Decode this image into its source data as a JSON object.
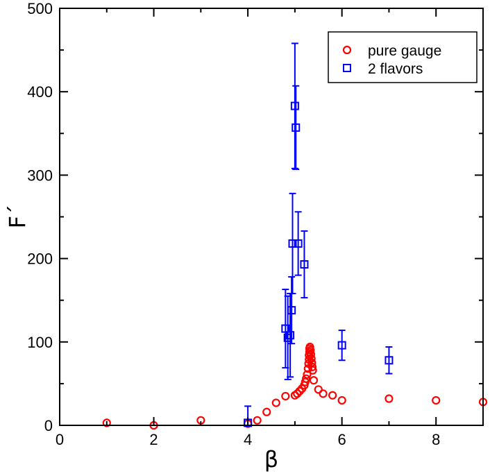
{
  "chart_data": {
    "type": "scatter",
    "title": "",
    "xlabel": "β",
    "ylabel": "F´",
    "xlim": [
      0,
      9
    ],
    "ylim": [
      0,
      500
    ],
    "x_ticks": [
      0,
      2,
      4,
      6,
      8
    ],
    "y_ticks": [
      0,
      100,
      200,
      300,
      400,
      500
    ],
    "x_tick_labels": [
      "0",
      "2",
      "4",
      "6",
      "8"
    ],
    "y_tick_labels": [
      "0",
      "100",
      "200",
      "300",
      "400",
      "500"
    ],
    "grid": false,
    "legend_position": "top-right",
    "series": [
      {
        "name": "pure gauge",
        "marker": "circle",
        "color": "#ff0000",
        "points": [
          {
            "x": 1.0,
            "y": 3
          },
          {
            "x": 2.0,
            "y": 0
          },
          {
            "x": 3.0,
            "y": 6
          },
          {
            "x": 4.0,
            "y": 2
          },
          {
            "x": 4.2,
            "y": 6
          },
          {
            "x": 4.4,
            "y": 16
          },
          {
            "x": 4.6,
            "y": 27
          },
          {
            "x": 4.8,
            "y": 35
          },
          {
            "x": 5.0,
            "y": 36
          },
          {
            "x": 5.05,
            "y": 38
          },
          {
            "x": 5.1,
            "y": 41
          },
          {
            "x": 5.15,
            "y": 44
          },
          {
            "x": 5.2,
            "y": 48
          },
          {
            "x": 5.22,
            "y": 52
          },
          {
            "x": 5.24,
            "y": 56
          },
          {
            "x": 5.26,
            "y": 61
          },
          {
            "x": 5.28,
            "y": 68
          },
          {
            "x": 5.29,
            "y": 74
          },
          {
            "x": 5.3,
            "y": 79
          },
          {
            "x": 5.3,
            "y": 84
          },
          {
            "x": 5.31,
            "y": 88
          },
          {
            "x": 5.31,
            "y": 92
          },
          {
            "x": 5.32,
            "y": 94
          },
          {
            "x": 5.33,
            "y": 90
          },
          {
            "x": 5.34,
            "y": 85
          },
          {
            "x": 5.35,
            "y": 80
          },
          {
            "x": 5.36,
            "y": 75
          },
          {
            "x": 5.37,
            "y": 70
          },
          {
            "x": 5.38,
            "y": 66
          },
          {
            "x": 5.4,
            "y": 54
          },
          {
            "x": 5.5,
            "y": 43
          },
          {
            "x": 5.6,
            "y": 38
          },
          {
            "x": 5.8,
            "y": 36
          },
          {
            "x": 6.0,
            "y": 30
          },
          {
            "x": 7.0,
            "y": 32
          },
          {
            "x": 8.0,
            "y": 30
          },
          {
            "x": 9.0,
            "y": 28
          }
        ]
      },
      {
        "name": "2 flavors",
        "marker": "square",
        "color": "#0000ff",
        "points": [
          {
            "x": 4.0,
            "y": 3,
            "err": 20
          },
          {
            "x": 4.8,
            "y": 116,
            "err": 47
          },
          {
            "x": 4.85,
            "y": 105,
            "err": 50
          },
          {
            "x": 4.9,
            "y": 108,
            "err": 50
          },
          {
            "x": 4.93,
            "y": 138,
            "err": 40
          },
          {
            "x": 4.95,
            "y": 218,
            "err": 60
          },
          {
            "x": 5.0,
            "y": 383,
            "err": 75
          },
          {
            "x": 5.02,
            "y": 357,
            "err": 50
          },
          {
            "x": 5.07,
            "y": 218,
            "err": 38
          },
          {
            "x": 5.2,
            "y": 193,
            "err": 40
          },
          {
            "x": 6.0,
            "y": 96,
            "err": 18
          },
          {
            "x": 7.0,
            "y": 78,
            "err": 16
          }
        ]
      }
    ]
  }
}
